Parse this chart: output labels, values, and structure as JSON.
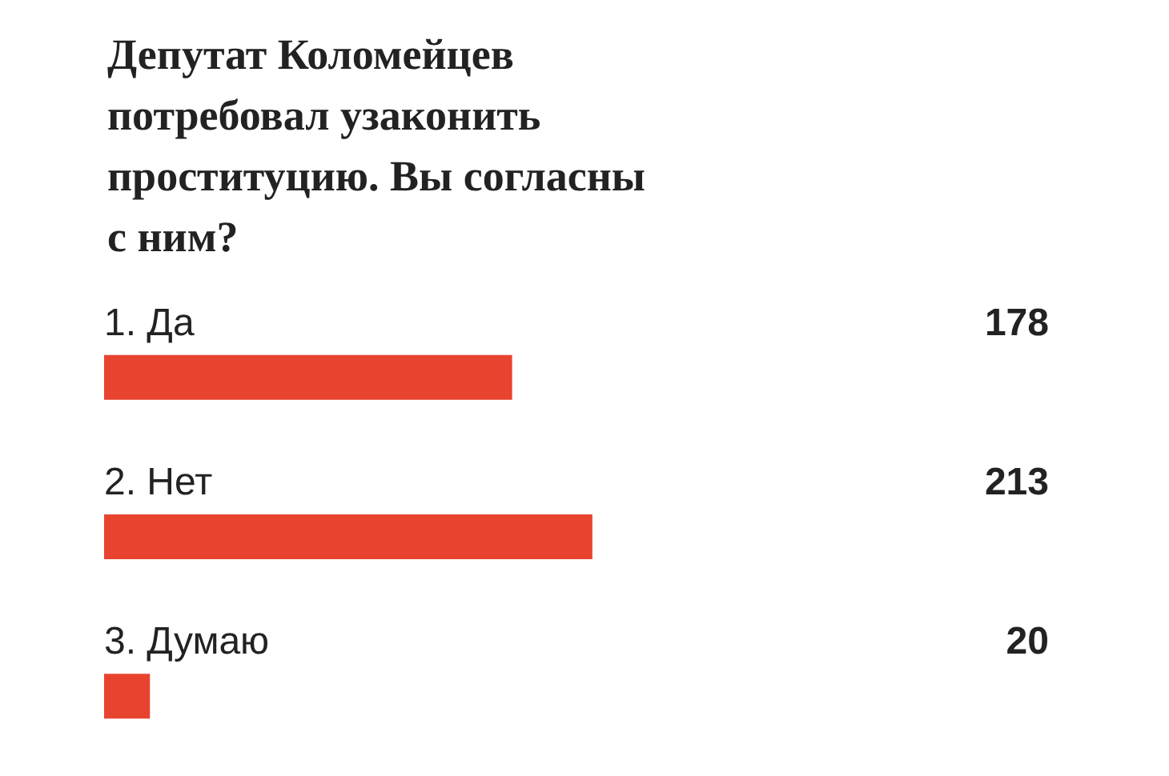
{
  "chart_data": {
    "type": "bar",
    "orientation": "horizontal",
    "title": "Депутат Коломейцев потребовал узаконить проституцию. Вы согласны с ним?",
    "categories": [
      "1. Да",
      "2. Нет",
      "3. Думаю"
    ],
    "values": [
      178,
      213,
      20
    ],
    "color": "#e8432f",
    "data_labels": true
  }
}
